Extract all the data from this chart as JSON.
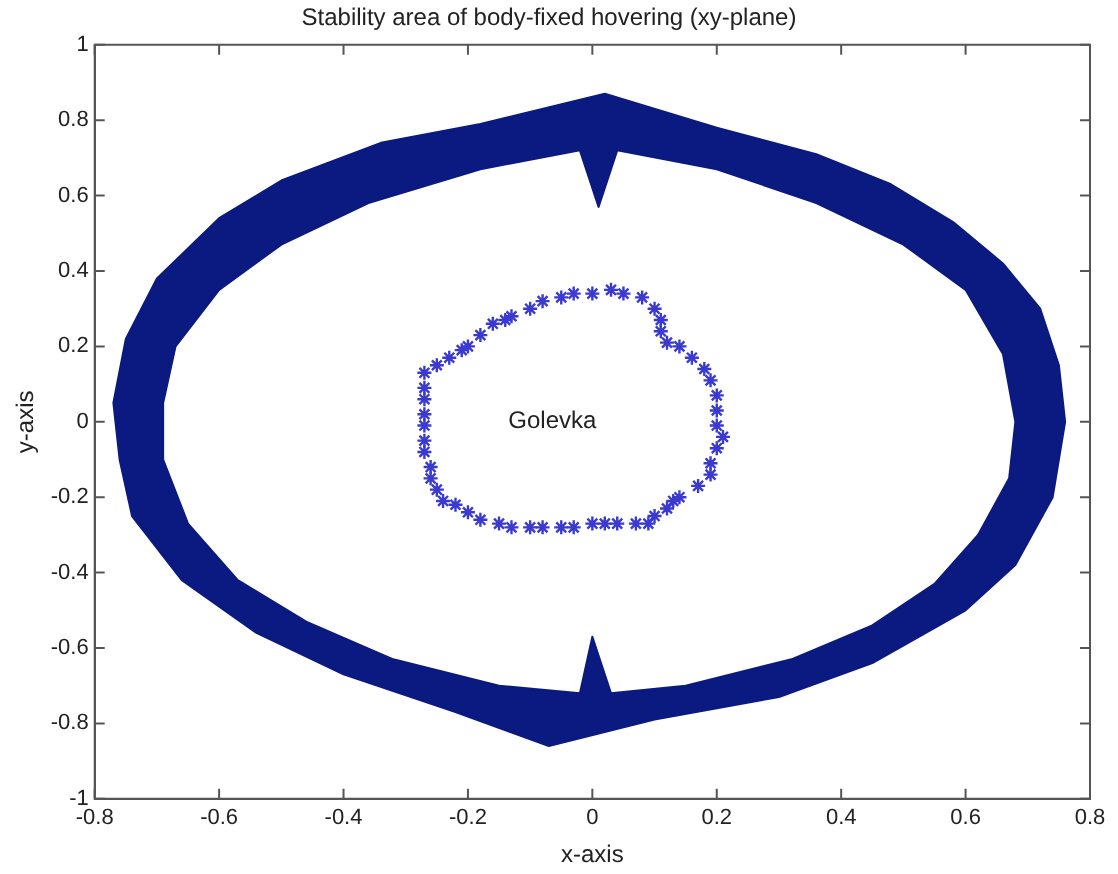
{
  "chart_data": {
    "type": "scatter",
    "title": "Stability area of body-fixed hovering (xy-plane)",
    "xlabel": "x-axis",
    "ylabel": "y-axis",
    "xlim": [
      -0.8,
      0.8
    ],
    "xticks": [
      -0.8,
      -0.6,
      -0.4,
      -0.2,
      0,
      0.2,
      0.4,
      0.6,
      0.8
    ],
    "ylim": [
      -1,
      1
    ],
    "yticks": [
      -1,
      -0.8,
      -0.6,
      -0.4,
      -0.2,
      0,
      0.2,
      0.4,
      0.6,
      0.8,
      1
    ],
    "grid": false,
    "legend": false,
    "annotations": [
      "Golevka"
    ],
    "series": [
      {
        "type": "area",
        "marker": "none",
        "color": "#0a1a80",
        "x": [
          0.76,
          0.75,
          0.72,
          0.66,
          0.58,
          0.48,
          0.36,
          0.2,
          0.02,
          -0.18,
          -0.34,
          -0.5,
          -0.6,
          -0.7,
          -0.75,
          -0.77,
          -0.76,
          -0.74,
          -0.66,
          -0.54,
          -0.4,
          -0.22,
          -0.07,
          0.1,
          0.3,
          0.45,
          0.6,
          0.68,
          0.74,
          0.76,
          0.68,
          0.67,
          0.62,
          0.55,
          0.45,
          0.32,
          0.15,
          0.03,
          0,
          -0.02,
          -0.15,
          -0.32,
          -0.46,
          -0.57,
          -0.65,
          -0.69,
          -0.69,
          -0.67,
          -0.6,
          -0.5,
          -0.36,
          -0.18,
          -0.02,
          0.01,
          0.04,
          0.2,
          0.36,
          0.5,
          0.6,
          0.66,
          0.68
        ],
        "values": [
          0,
          0.15,
          0.3,
          0.42,
          0.53,
          0.63,
          0.71,
          0.78,
          0.87,
          0.79,
          0.74,
          0.64,
          0.54,
          0.38,
          0.22,
          0.05,
          -0.1,
          -0.25,
          -0.42,
          -0.56,
          -0.67,
          -0.77,
          -0.86,
          -0.79,
          -0.73,
          -0.64,
          -0.5,
          -0.38,
          -0.2,
          0,
          0,
          -0.15,
          -0.3,
          -0.43,
          -0.54,
          -0.63,
          -0.7,
          -0.72,
          -0.57,
          -0.72,
          -0.7,
          -0.63,
          -0.53,
          -0.42,
          -0.27,
          -0.1,
          0.05,
          0.2,
          0.35,
          0.47,
          0.58,
          0.67,
          0.72,
          0.57,
          0.72,
          0.67,
          0.58,
          0.47,
          0.35,
          0.18,
          0
        ]
      },
      {
        "type": "scatter",
        "marker": "cross",
        "color": "#3a3ad0",
        "x": [
          0,
          0.03,
          0.05,
          0.08,
          0.1,
          0.11,
          0.11,
          0.12,
          0.14,
          0.16,
          0.18,
          0.19,
          0.2,
          0.2,
          0.2,
          0.21,
          0.2,
          0.19,
          0.19,
          0.17,
          0.14,
          0.13,
          0.12,
          0.1,
          0.09,
          0.07,
          0.04,
          0.02,
          0,
          -0.03,
          -0.05,
          -0.08,
          -0.1,
          -0.13,
          -0.15,
          -0.18,
          -0.2,
          -0.22,
          -0.24,
          -0.25,
          -0.26,
          -0.26,
          -0.27,
          -0.27,
          -0.27,
          -0.27,
          -0.27,
          -0.27,
          -0.27,
          -0.25,
          -0.23,
          -0.21,
          -0.2,
          -0.18,
          -0.16,
          -0.14,
          -0.13,
          -0.1,
          -0.08,
          -0.05,
          -0.03
        ],
        "values": [
          0.34,
          0.35,
          0.34,
          0.33,
          0.3,
          0.27,
          0.24,
          0.21,
          0.2,
          0.17,
          0.14,
          0.11,
          0.07,
          0.03,
          -0.01,
          -0.04,
          -0.07,
          -0.11,
          -0.14,
          -0.17,
          -0.2,
          -0.21,
          -0.23,
          -0.25,
          -0.27,
          -0.27,
          -0.27,
          -0.27,
          -0.27,
          -0.28,
          -0.28,
          -0.28,
          -0.28,
          -0.28,
          -0.27,
          -0.26,
          -0.24,
          -0.22,
          -0.21,
          -0.18,
          -0.15,
          -0.12,
          -0.08,
          -0.05,
          -0.01,
          0.02,
          0.06,
          0.09,
          0.13,
          0.15,
          0.17,
          0.19,
          0.2,
          0.23,
          0.26,
          0.27,
          0.28,
          0.3,
          0.32,
          0.33,
          0.34
        ]
      }
    ]
  }
}
